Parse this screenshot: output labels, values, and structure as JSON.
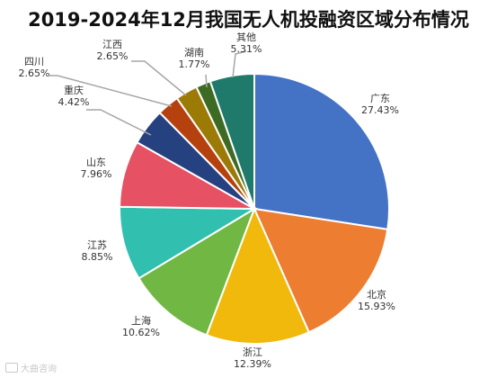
{
  "chart_data": {
    "type": "pie",
    "title": "2019-2024年12月我国无人机投融资区域分布情况",
    "slices": [
      {
        "label": "广东",
        "value": 27.43,
        "text": "27.43%",
        "color": "#4472C4"
      },
      {
        "label": "北京",
        "value": 15.93,
        "text": "15.93%",
        "color": "#ED7D31"
      },
      {
        "label": "浙江",
        "value": 12.39,
        "text": "12.39%",
        "color": "#F0B90B"
      },
      {
        "label": "上海",
        "value": 10.62,
        "text": "10.62%",
        "color": "#70B843"
      },
      {
        "label": "江苏",
        "value": 8.85,
        "text": "8.85%",
        "color": "#31C0B0"
      },
      {
        "label": "山东",
        "value": 7.96,
        "text": "7.96%",
        "color": "#E65164"
      },
      {
        "label": "重庆",
        "value": 4.42,
        "text": "4.42%",
        "color": "#25417F"
      },
      {
        "label": "四川",
        "value": 2.65,
        "text": "2.65%",
        "color": "#B5410F"
      },
      {
        "label": "江西",
        "value": 2.65,
        "text": "2.65%",
        "color": "#9C7A06"
      },
      {
        "label": "湖南",
        "value": 1.77,
        "text": "1.77%",
        "color": "#3E6B24"
      },
      {
        "label": "其他",
        "value": 5.31,
        "text": "5.31%",
        "color": "#1F7A6C"
      }
    ]
  },
  "watermark": "大曲咨询"
}
